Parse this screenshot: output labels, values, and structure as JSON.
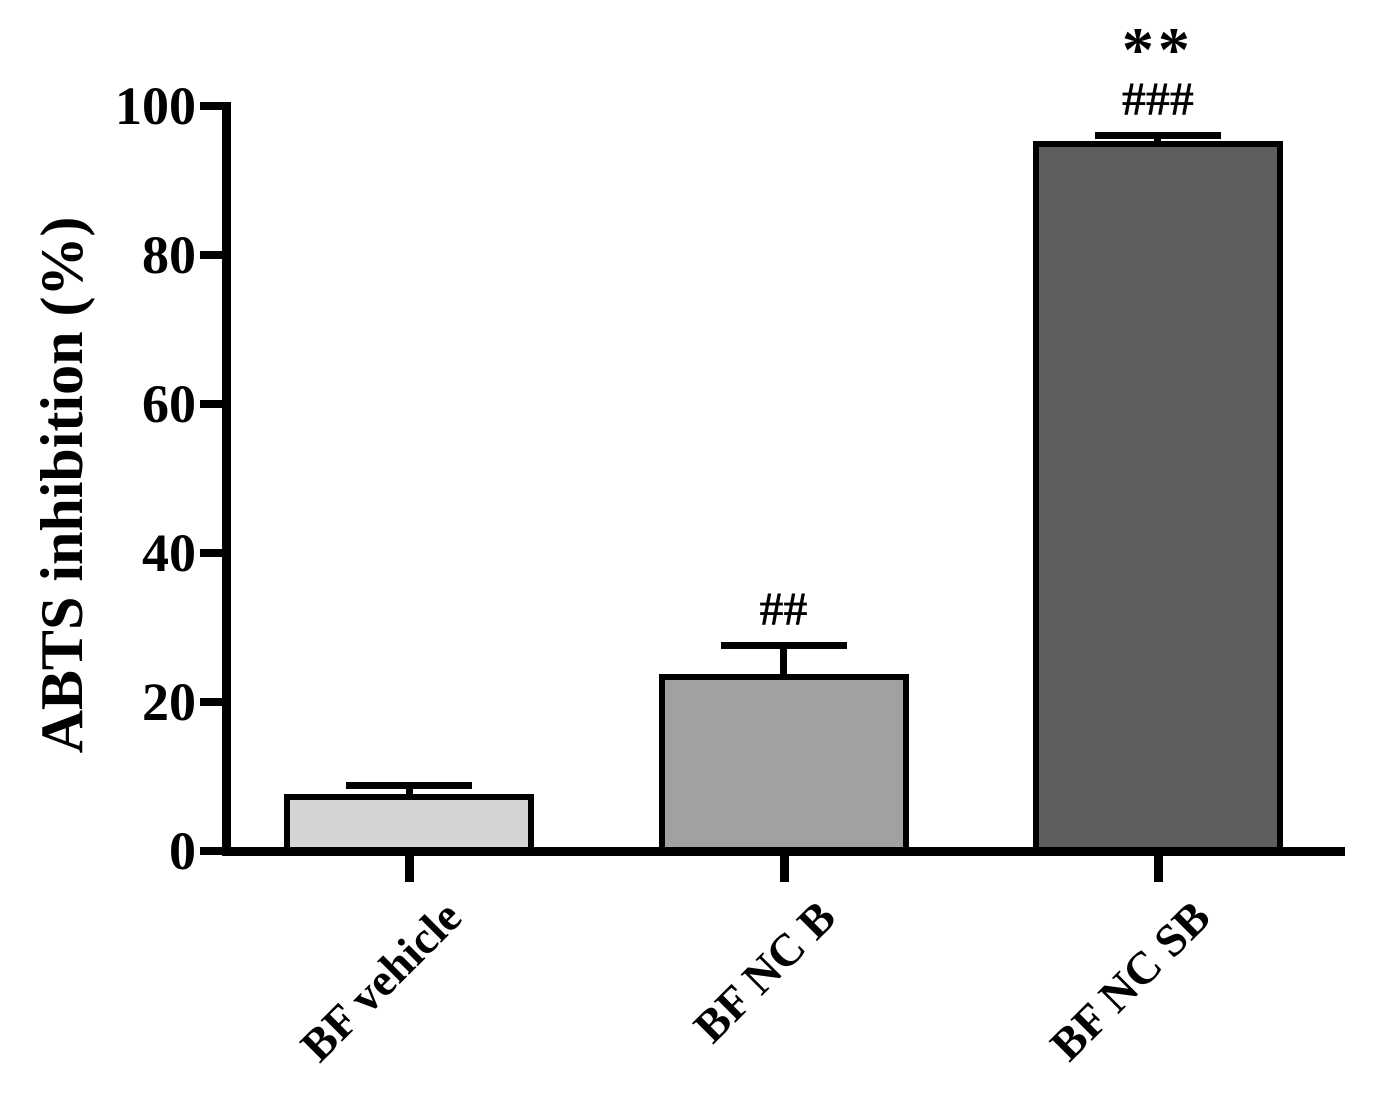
{
  "chart_data": {
    "type": "bar",
    "title": "",
    "ylabel": "ABTS inhibition (%)",
    "xlabel": "",
    "ylim": [
      0,
      100
    ],
    "yticks": [
      0,
      20,
      40,
      60,
      80,
      100
    ],
    "grid": false,
    "legend_position": "none",
    "categories": [
      "BF vehicle",
      "BF NC B",
      "BF NC SB"
    ],
    "values": [
      7.2,
      23.3,
      94.9
    ],
    "errors_sd_upper": [
      1.7,
      4.3,
      1.2
    ],
    "error_bar_style": "upper cap only",
    "annotations": [
      [],
      [
        "##"
      ],
      [
        "**",
        "###"
      ]
    ],
    "bar_fill_colors": [
      "#d4d4d4",
      "#a1a1a1",
      "#5e5e5e"
    ],
    "bar_border_color": "#000000",
    "axis_color": "#000000",
    "background_color": "#ffffff",
    "x_label_rotation_deg": 45
  }
}
